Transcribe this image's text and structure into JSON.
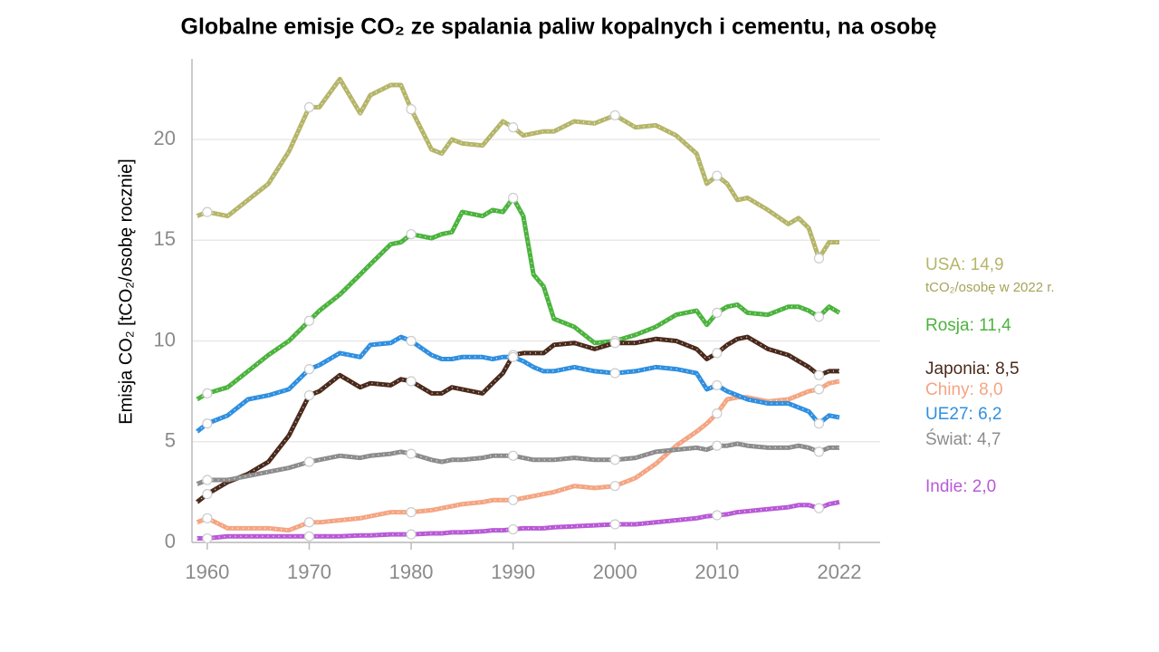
{
  "chart_data": {
    "type": "line",
    "title": "Globalne emisje CO₂ ze spalania paliw kopalnych i cementu, na osobę",
    "y_label": "Emisja CO₂ [tCO₂/osobę rocznie]",
    "unit_note": "tCO₂/osobę w 2022 r.",
    "x": [
      1959,
      1960,
      1962,
      1964,
      1966,
      1968,
      1970,
      1971,
      1973,
      1975,
      1976,
      1978,
      1979,
      1980,
      1982,
      1983,
      1984,
      1985,
      1987,
      1988,
      1989,
      1990,
      1991,
      1992,
      1993,
      1994,
      1996,
      1998,
      2000,
      2002,
      2004,
      2006,
      2008,
      2009,
      2010,
      2011,
      2012,
      2013,
      2015,
      2017,
      2018,
      2019,
      2020,
      2021,
      2022
    ],
    "xlim": [
      1958.5,
      2026
    ],
    "xticks": [
      1960,
      1970,
      1980,
      1990,
      2000,
      2010,
      2022
    ],
    "ylim": [
      0,
      24
    ],
    "yticks": [
      0,
      5,
      10,
      15,
      20
    ],
    "grid": true,
    "series": [
      {
        "name": "USA: 14,9",
        "color": "#b5b56a",
        "values": [
          16.2,
          16.4,
          16.2,
          17.0,
          17.8,
          19.4,
          21.6,
          21.6,
          23.0,
          21.3,
          22.2,
          22.7,
          22.7,
          21.5,
          19.5,
          19.3,
          20.0,
          19.8,
          19.7,
          20.3,
          20.9,
          20.6,
          20.2,
          20.3,
          20.4,
          20.4,
          20.9,
          20.8,
          21.2,
          20.6,
          20.7,
          20.2,
          19.3,
          17.8,
          18.2,
          17.8,
          17.0,
          17.1,
          16.5,
          15.8,
          16.1,
          15.6,
          14.1,
          14.9,
          14.9
        ]
      },
      {
        "name": "Rosja: 11,4",
        "color": "#4cb33e",
        "values": [
          7.1,
          7.4,
          7.7,
          8.5,
          9.3,
          10.0,
          11.0,
          11.5,
          12.3,
          13.3,
          13.8,
          14.8,
          14.9,
          15.3,
          15.1,
          15.3,
          15.4,
          16.4,
          16.2,
          16.5,
          16.4,
          17.1,
          16.2,
          13.3,
          12.7,
          11.1,
          10.7,
          9.9,
          10.0,
          10.3,
          10.7,
          11.3,
          11.5,
          10.8,
          11.4,
          11.7,
          11.8,
          11.4,
          11.3,
          11.7,
          11.7,
          11.5,
          11.2,
          11.7,
          11.4
        ]
      },
      {
        "name": "Japonia: 8,5",
        "color": "#4a2a1c",
        "values": [
          2.0,
          2.4,
          3.0,
          3.4,
          4.0,
          5.3,
          7.3,
          7.5,
          8.3,
          7.7,
          7.9,
          7.8,
          8.1,
          8.0,
          7.4,
          7.4,
          7.7,
          7.6,
          7.4,
          7.9,
          8.4,
          9.3,
          9.4,
          9.4,
          9.4,
          9.8,
          9.9,
          9.6,
          9.9,
          9.9,
          10.1,
          10.0,
          9.6,
          9.1,
          9.4,
          9.8,
          10.1,
          10.2,
          9.6,
          9.3,
          9.0,
          8.7,
          8.3,
          8.5,
          8.5
        ]
      },
      {
        "name": "Chiny: 8,0",
        "color": "#f4a582",
        "values": [
          1.0,
          1.2,
          0.7,
          0.7,
          0.7,
          0.6,
          1.0,
          1.0,
          1.1,
          1.2,
          1.3,
          1.5,
          1.5,
          1.5,
          1.6,
          1.7,
          1.8,
          1.9,
          2.0,
          2.1,
          2.1,
          2.1,
          2.2,
          2.3,
          2.4,
          2.5,
          2.8,
          2.7,
          2.8,
          3.2,
          3.9,
          4.8,
          5.5,
          5.9,
          6.4,
          7.1,
          7.2,
          7.2,
          7.0,
          7.1,
          7.3,
          7.5,
          7.6,
          7.9,
          8.0
        ]
      },
      {
        "name": "UE27: 6,2",
        "color": "#2f8fe0",
        "values": [
          5.5,
          5.9,
          6.3,
          7.1,
          7.3,
          7.6,
          8.6,
          8.8,
          9.4,
          9.2,
          9.8,
          9.9,
          10.2,
          10.0,
          9.3,
          9.1,
          9.1,
          9.2,
          9.2,
          9.1,
          9.2,
          9.2,
          9.0,
          8.7,
          8.5,
          8.5,
          8.7,
          8.5,
          8.4,
          8.5,
          8.7,
          8.6,
          8.4,
          7.6,
          7.8,
          7.5,
          7.3,
          7.1,
          6.9,
          6.9,
          6.7,
          6.5,
          5.9,
          6.3,
          6.2
        ]
      },
      {
        "name": "Świat: 4,7",
        "color": "#8c8c8c",
        "values": [
          2.9,
          3.1,
          3.1,
          3.3,
          3.5,
          3.7,
          4.0,
          4.1,
          4.3,
          4.2,
          4.3,
          4.4,
          4.5,
          4.4,
          4.1,
          4.0,
          4.1,
          4.1,
          4.2,
          4.3,
          4.3,
          4.3,
          4.2,
          4.1,
          4.1,
          4.1,
          4.2,
          4.1,
          4.1,
          4.2,
          4.5,
          4.6,
          4.7,
          4.6,
          4.8,
          4.8,
          4.9,
          4.8,
          4.7,
          4.7,
          4.8,
          4.7,
          4.5,
          4.7,
          4.7
        ]
      },
      {
        "name": "Indie: 2,0",
        "color": "#b85ad6",
        "values": [
          0.2,
          0.2,
          0.3,
          0.3,
          0.3,
          0.3,
          0.3,
          0.3,
          0.3,
          0.35,
          0.35,
          0.4,
          0.4,
          0.4,
          0.45,
          0.45,
          0.5,
          0.5,
          0.55,
          0.6,
          0.6,
          0.65,
          0.7,
          0.7,
          0.7,
          0.75,
          0.8,
          0.85,
          0.9,
          0.9,
          1.0,
          1.1,
          1.2,
          1.3,
          1.35,
          1.4,
          1.5,
          1.55,
          1.65,
          1.75,
          1.85,
          1.85,
          1.7,
          1.9,
          2.0
        ]
      }
    ]
  }
}
